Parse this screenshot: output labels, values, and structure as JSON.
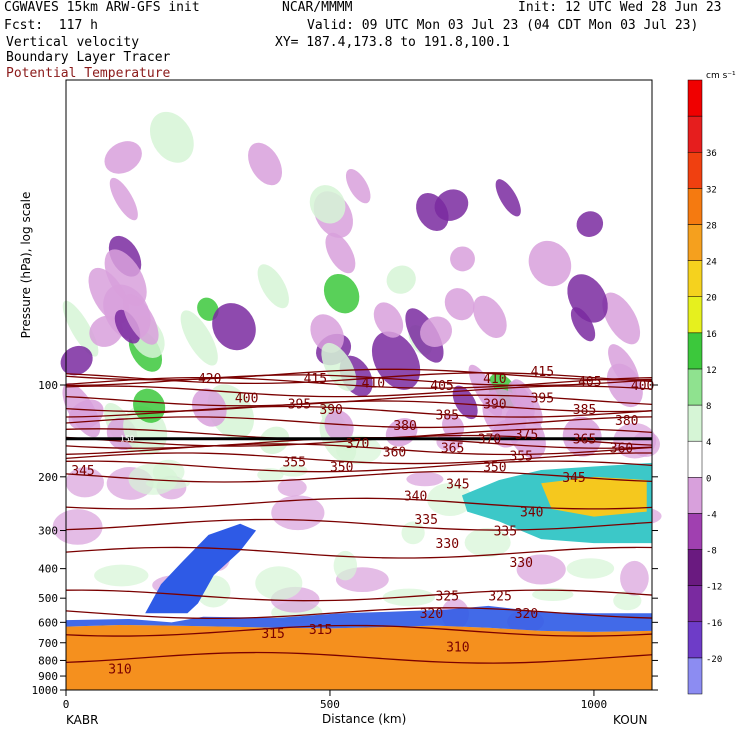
{
  "header": {
    "model": "CGWAVES 15km ARW-GFS init",
    "forecast": "Fcst:  117 h",
    "field1": "Vertical velocity",
    "field2": "Boundary Layer Tracer",
    "field3": "Potential Temperature",
    "center": "NCAR/MMMM",
    "init": "Init: 12 UTC Wed 28 Jun 23",
    "valid": "Valid: 09 UTC Mon 03 Jul 23 (04 CDT Mon 03 Jul 23)",
    "xy": "XY= 187.4,173.8 to 191.8,100.1"
  },
  "colors": {
    "theta": "#7a0000",
    "frame": "#000000"
  },
  "chart_data": {
    "type": "heatmap",
    "title": "",
    "xlabel": "Distance (km)",
    "ylabel": "Pressure (hPa), log scale",
    "x_ticks": [
      "0",
      "500",
      "1000"
    ],
    "y_ticks": [
      "100",
      "200",
      "300",
      "400",
      "500",
      "600",
      "700",
      "800",
      "900",
      "1000"
    ],
    "xlim": [
      0,
      1110
    ],
    "ylim": [
      1000,
      10
    ],
    "start_label": "KABR",
    "end_label": "KOUN",
    "colorbar": {
      "units": "cm s⁻¹",
      "levels": [
        -20,
        -16,
        -12,
        -8,
        -4,
        0,
        4,
        8,
        12,
        16,
        20,
        24,
        28,
        32,
        36
      ],
      "tick_labels": [
        "-20",
        "-16",
        "-12",
        "-8",
        "-4",
        "0",
        "4",
        "8",
        "12",
        "16",
        "20",
        "24",
        "28",
        "32",
        "36"
      ],
      "colors": [
        "#8c8cf2",
        "#6e3cc8",
        "#7a2aa0",
        "#6a1a80",
        "#a040b0",
        "#d8a0dc",
        "#ffffff",
        "#d6f5d6",
        "#8fe28f",
        "#3cc83c",
        "#e6f01e",
        "#f5d21e",
        "#f5a01e",
        "#f57a10",
        "#f04010",
        "#e61e1e",
        "#f00000"
      ]
    },
    "theta_contours": [
      {
        "label": "310",
        "p": 850,
        "x": 80
      },
      {
        "label": "315",
        "p": 650,
        "x": 370
      },
      {
        "label": "315",
        "p": 630,
        "x": 460
      },
      {
        "label": "310",
        "p": 720,
        "x": 720
      },
      {
        "label": "320",
        "p": 560,
        "x": 670
      },
      {
        "label": "320",
        "p": 560,
        "x": 850
      },
      {
        "label": "325",
        "p": 490,
        "x": 700
      },
      {
        "label": "325",
        "p": 490,
        "x": 800
      },
      {
        "label": "330",
        "p": 380,
        "x": 840
      },
      {
        "label": "330",
        "p": 330,
        "x": 700
      },
      {
        "label": "335",
        "p": 300,
        "x": 810
      },
      {
        "label": "335",
        "p": 275,
        "x": 660
      },
      {
        "label": "340",
        "p": 230,
        "x": 640
      },
      {
        "label": "340",
        "p": 260,
        "x": 860
      },
      {
        "label": "345",
        "p": 210,
        "x": 720
      },
      {
        "label": "345",
        "p": 190,
        "x": 10
      },
      {
        "label": "345",
        "p": 200,
        "x": 940
      },
      {
        "label": "350",
        "p": 185,
        "x": 500
      },
      {
        "label": "350",
        "p": 185,
        "x": 790
      },
      {
        "label": "355",
        "p": 178,
        "x": 410
      },
      {
        "label": "355",
        "p": 170,
        "x": 840
      },
      {
        "label": "360",
        "p": 165,
        "x": 600
      },
      {
        "label": "360",
        "p": 160,
        "x": 1030
      },
      {
        "label": "365",
        "p": 160,
        "x": 710
      },
      {
        "label": "365",
        "p": 150,
        "x": 960
      },
      {
        "label": "370",
        "p": 155,
        "x": 530
      },
      {
        "label": "370",
        "p": 150,
        "x": 780
      },
      {
        "label": "375",
        "p": 145,
        "x": 850
      },
      {
        "label": "380",
        "p": 135,
        "x": 620
      },
      {
        "label": "380",
        "p": 130,
        "x": 1040
      },
      {
        "label": "385",
        "p": 125,
        "x": 700
      },
      {
        "label": "385",
        "p": 120,
        "x": 960
      },
      {
        "label": "390",
        "p": 120,
        "x": 480
      },
      {
        "label": "390",
        "p": 115,
        "x": 790
      },
      {
        "label": "395",
        "p": 115,
        "x": 420
      },
      {
        "label": "395",
        "p": 110,
        "x": 880
      },
      {
        "label": "400",
        "p": 110,
        "x": 320
      },
      {
        "label": "400",
        "p": 100,
        "x": 1070
      },
      {
        "label": "405",
        "p": 100,
        "x": 690
      },
      {
        "label": "405",
        "p": 97,
        "x": 970
      },
      {
        "label": "410",
        "p": 98,
        "x": 560
      },
      {
        "label": "410",
        "p": 95,
        "x": 790
      },
      {
        "label": "415",
        "p": 95,
        "x": 450
      },
      {
        "label": "415",
        "p": 90,
        "x": 880
      },
      {
        "label": "420",
        "p": 95,
        "x": 250
      }
    ],
    "tropopause_marker": {
      "label": "150",
      "p": 150
    }
  }
}
